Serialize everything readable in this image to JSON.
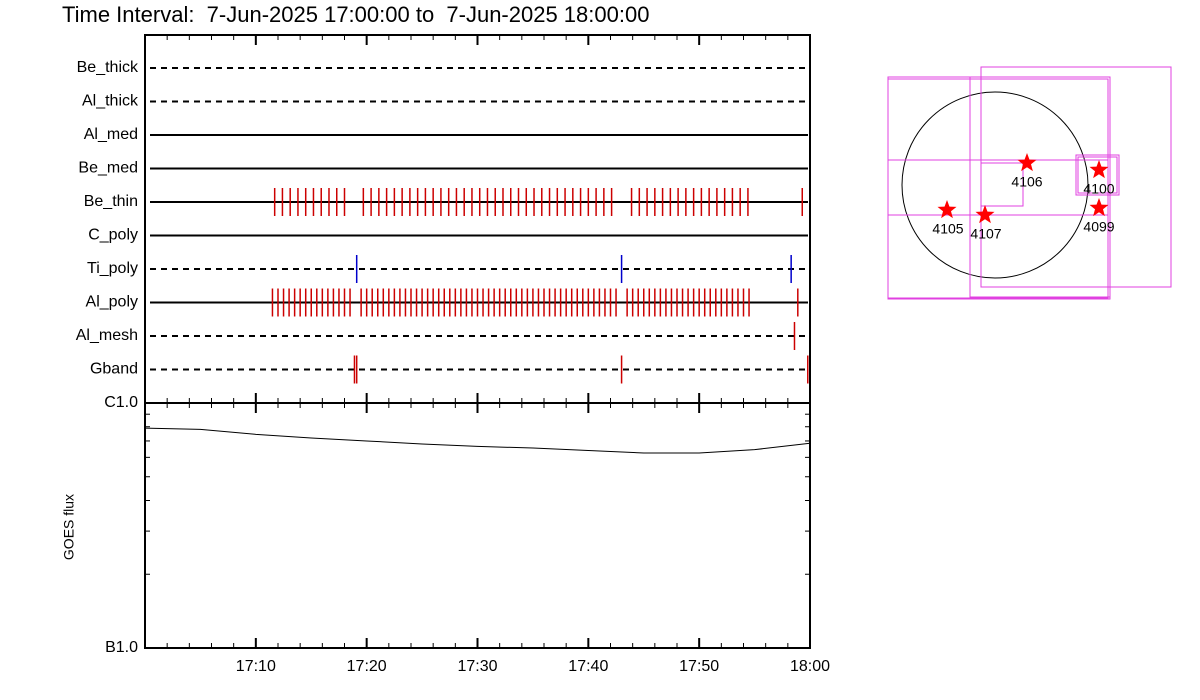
{
  "title": "Time Interval:  7-Jun-2025 17:00:00 to  7-Jun-2025 18:00:00",
  "timeline": {
    "xlim": [
      0,
      60
    ],
    "xticks": [
      {
        "value": 10,
        "label": "17:10"
      },
      {
        "value": 20,
        "label": "17:20"
      },
      {
        "value": 30,
        "label": "17:30"
      },
      {
        "value": 40,
        "label": "17:40"
      },
      {
        "value": 50,
        "label": "17:50"
      },
      {
        "value": 60,
        "label": "18:00"
      }
    ]
  },
  "filters": [
    {
      "name": "Be_thick",
      "style": "dashed",
      "color": "#cc0000",
      "events": []
    },
    {
      "name": "Al_thick",
      "style": "dashed",
      "color": "#cc0000",
      "events": []
    },
    {
      "name": "Al_med",
      "style": "solid",
      "color": "#cc0000",
      "events": []
    },
    {
      "name": "Be_med",
      "style": "solid",
      "color": "#cc0000",
      "events": []
    },
    {
      "name": "Be_thin",
      "style": "solid",
      "color": "#cc0000",
      "events": [
        11.7,
        12.4,
        13.1,
        13.8,
        14.5,
        15.2,
        15.9,
        16.6,
        17.3,
        18.0,
        19.7,
        20.4,
        21.1,
        21.8,
        22.5,
        23.2,
        23.9,
        24.6,
        25.3,
        26.0,
        26.7,
        27.4,
        28.1,
        28.8,
        29.5,
        30.2,
        30.9,
        31.6,
        32.3,
        33.0,
        33.7,
        34.4,
        35.1,
        35.8,
        36.5,
        37.2,
        37.9,
        38.6,
        39.3,
        40.0,
        40.7,
        41.4,
        42.1,
        43.9,
        44.6,
        45.3,
        46.0,
        46.7,
        47.4,
        48.1,
        48.8,
        49.5,
        50.2,
        50.9,
        51.6,
        52.3,
        53.0,
        53.7,
        54.4,
        59.3
      ]
    },
    {
      "name": "C_poly",
      "style": "solid",
      "color": "#cc0000",
      "events": []
    },
    {
      "name": "Ti_poly",
      "style": "dashed",
      "color": "#0000cc",
      "events": [
        19.1,
        43.0,
        58.3
      ]
    },
    {
      "name": "Al_poly",
      "style": "solid",
      "color": "#cc0000",
      "events": [
        11.5,
        12.0,
        12.5,
        13.0,
        13.5,
        14.0,
        14.5,
        15.0,
        15.5,
        16.0,
        16.5,
        17.0,
        17.5,
        18.0,
        18.5,
        19.5,
        20.0,
        20.5,
        21.0,
        21.5,
        22.0,
        22.5,
        23.0,
        23.5,
        24.0,
        24.5,
        25.0,
        25.5,
        26.0,
        26.5,
        27.0,
        27.5,
        28.0,
        28.5,
        29.0,
        29.5,
        30.0,
        30.5,
        31.0,
        31.5,
        32.0,
        32.5,
        33.0,
        33.5,
        34.0,
        34.5,
        35.0,
        35.5,
        36.0,
        36.5,
        37.0,
        37.5,
        38.0,
        38.5,
        39.0,
        39.5,
        40.0,
        40.5,
        41.0,
        41.5,
        42.0,
        42.5,
        43.5,
        44.0,
        44.5,
        45.0,
        45.5,
        46.0,
        46.5,
        47.0,
        47.5,
        48.0,
        48.5,
        49.0,
        49.5,
        50.0,
        50.5,
        51.0,
        51.5,
        52.0,
        52.5,
        53.0,
        53.5,
        54.0,
        54.5,
        58.9
      ]
    },
    {
      "name": "Al_mesh",
      "style": "dashed",
      "color": "#cc0000",
      "events": [
        58.6
      ]
    },
    {
      "name": "Gband",
      "style": "dashed",
      "color": "#cc0000",
      "events": [
        18.9,
        19.1,
        43.0,
        59.8
      ]
    }
  ],
  "goes": {
    "ylabel": "GOES flux",
    "log": true,
    "ylim": [
      1e-07,
      1e-06
    ],
    "yticks": [
      {
        "value": 1e-07,
        "label": "B1.0"
      },
      {
        "value": 1e-06,
        "label": "C1.0"
      }
    ],
    "x": [
      0,
      5,
      10,
      15,
      20,
      25,
      30,
      35,
      40,
      45,
      50,
      55,
      60
    ],
    "values": [
      7.9e-07,
      7.8e-07,
      7.45e-07,
      7.2e-07,
      7e-07,
      6.8e-07,
      6.65e-07,
      6.55e-07,
      6.4e-07,
      6.25e-07,
      6.25e-07,
      6.45e-07,
      6.85e-07
    ]
  },
  "regions": [
    "4106",
    "4100",
    "4099",
    "4105",
    "4107"
  ]
}
